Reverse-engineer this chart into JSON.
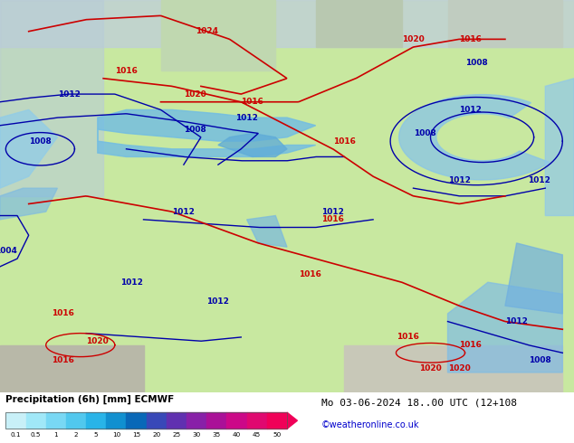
{
  "title_left": "Precipitation (6h) [mm] ECMWF",
  "title_right": "Mo 03-06-2024 18..00 UTC (12+108",
  "credit": "©weatheronline.co.uk",
  "colorbar_values": [
    0.1,
    0.5,
    1,
    2,
    5,
    10,
    15,
    20,
    25,
    30,
    35,
    40,
    45,
    50
  ],
  "colorbar_colors": [
    "#c8f0f8",
    "#a0e8f8",
    "#78d8f4",
    "#50c8ee",
    "#28b4e8",
    "#1090d0",
    "#0868b8",
    "#3848b8",
    "#6030b0",
    "#8820a8",
    "#aa1098",
    "#cc0888",
    "#e00870",
    "#f00058"
  ],
  "fig_width": 6.34,
  "fig_height": 4.9,
  "dpi": 100
}
